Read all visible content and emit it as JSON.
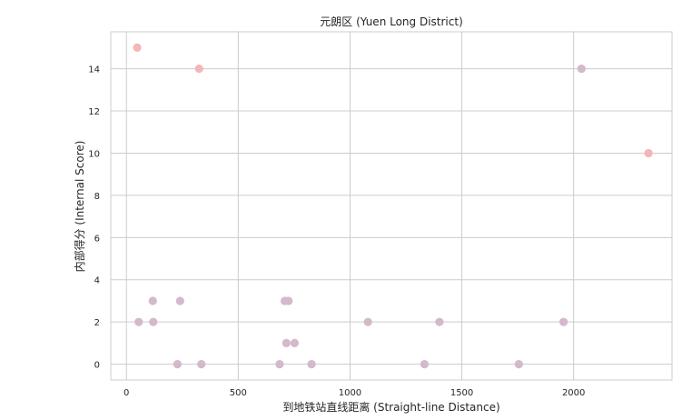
{
  "chart_data": {
    "type": "scatter",
    "title": "元朗区 (Yuen Long District)",
    "xlabel": "到地铁站直线距离 (Straight-line Distance)",
    "ylabel": "内部得分 (Internal Score)",
    "xlim": [
      -70,
      2440
    ],
    "ylim": [
      -0.75,
      15.75
    ],
    "xticks": [
      0,
      500,
      1000,
      1500,
      2000
    ],
    "yticks": [
      0,
      2,
      4,
      6,
      8,
      10,
      12,
      14
    ],
    "grid": true,
    "series": [
      {
        "color": "#f4b7b7",
        "points": [
          {
            "x": 48,
            "y": 15
          },
          {
            "x": 325,
            "y": 14
          },
          {
            "x": 2335,
            "y": 10
          }
        ]
      },
      {
        "color": "#d3b9ca",
        "points": [
          {
            "x": 2035,
            "y": 14
          },
          {
            "x": 118,
            "y": 3
          },
          {
            "x": 240,
            "y": 3
          },
          {
            "x": 708,
            "y": 3
          },
          {
            "x": 725,
            "y": 3
          },
          {
            "x": 55,
            "y": 2
          },
          {
            "x": 120,
            "y": 2
          },
          {
            "x": 1080,
            "y": 2
          },
          {
            "x": 1400,
            "y": 2
          },
          {
            "x": 1955,
            "y": 2
          },
          {
            "x": 715,
            "y": 1
          },
          {
            "x": 752,
            "y": 1
          },
          {
            "x": 228,
            "y": 0
          },
          {
            "x": 335,
            "y": 0
          },
          {
            "x": 685,
            "y": 0
          },
          {
            "x": 828,
            "y": 0
          },
          {
            "x": 1333,
            "y": 0
          },
          {
            "x": 1755,
            "y": 0
          }
        ]
      }
    ]
  }
}
